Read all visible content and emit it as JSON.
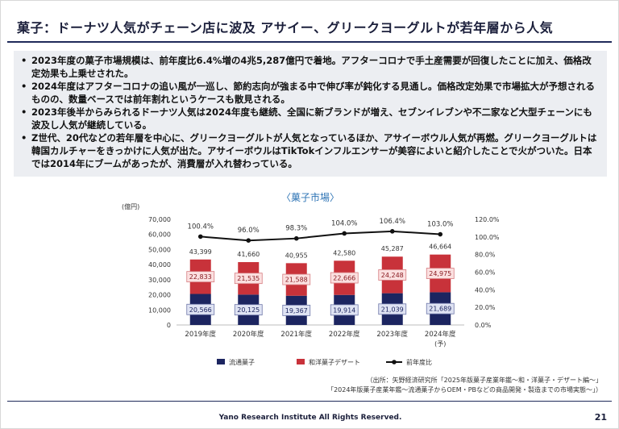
{
  "title": "菓子：ドーナツ人気がチェーン店に波及 アサイー、グリークヨーグルトが若年層から人気",
  "bullets": [
    "2023年度の菓子市場規模は、前年度比6.4%増の4兆5,287億円で着地。アフターコロナで手土産需要が回復したことに加え、価格改定効果も上乗せされた。",
    "2024年度はアフターコロナの追い風が一巡し、節約志向が強まる中で伸び率が鈍化する見通し。価格改定効果で市場拡大が予想されるものの、数量ベースでは前年割れというケースも散見される。",
    "2023年後半からみられるドーナツ人気は2024年度も継続、全国に新ブランドが増え、セブンイレブンや不二家など大型チェーンにも波及し人気が継続している。",
    "Z世代、20代などの若年層を中心に、グリークヨーグルトが人気となっているほか、アサイーボウル人気が再燃。グリークヨーグルトは韓国カルチャーをきっかけに人気が出た。アサイーボウルはTikTokインフルエンサーが美容によいと紹介したことで火がついた。日本では2014年にブームがあったが、消費層が入れ替わっている。"
  ],
  "chart_title": "〈菓子市場〉",
  "source_lines": [
    "（出所：矢野経済研究所「2025年版菓子産業年鑑～和・洋菓子・デザート編～」",
    "「2024年版菓子産業年鑑～流通菓子からOEM・PBなどの商品開発・製造までの市場実態～」）"
  ],
  "footer": "Yano Research Institute All Rights Reserved.",
  "page_number": "21",
  "colors": {
    "navy": "#1c2560",
    "red": "#c8323a",
    "line": "#111111",
    "accent": "#2e74b5"
  },
  "chart_data": {
    "type": "bar",
    "stacked": true,
    "title": "〈菓子市場〉",
    "ylabel": "(億円)",
    "ylim": [
      0,
      70000
    ],
    "y2lim": [
      0,
      120
    ],
    "y_ticks": [
      "0",
      "10,000",
      "20,000",
      "30,000",
      "40,000",
      "50,000",
      "60,000",
      "70,000"
    ],
    "y2_ticks": [
      "0.0%",
      "20.0%",
      "40.0%",
      "60.0%",
      "80.0%",
      "100.0%",
      "120.0%"
    ],
    "categories": [
      "2019年度",
      "2020年度",
      "2021年度",
      "2022年度",
      "2023年度",
      "2024年度"
    ],
    "category_notes": [
      "",
      "",
      "",
      "",
      "",
      "(予)"
    ],
    "series": [
      {
        "name": "流通菓子",
        "values": [
          20566,
          20125,
          19367,
          19914,
          21039,
          21689
        ],
        "labels": [
          "20,566",
          "20,125",
          "19,367",
          "19,914",
          "21,039",
          "21,689"
        ]
      },
      {
        "name": "和洋菓子デザート",
        "values": [
          22833,
          21535,
          21588,
          22666,
          24248,
          24975
        ],
        "labels": [
          "22,833",
          "21,535",
          "21,588",
          "22,666",
          "24,248",
          "24,975"
        ]
      }
    ],
    "totals": [
      43399,
      41660,
      40955,
      42580,
      45287,
      46664
    ],
    "total_labels": [
      "43,399",
      "41,660",
      "40,955",
      "42,580",
      "45,287",
      "46,664"
    ],
    "line": {
      "name": "前年度比",
      "values": [
        100.4,
        96.0,
        98.3,
        104.0,
        106.4,
        103.0
      ],
      "labels": [
        "100.4%",
        "96.0%",
        "98.3%",
        "104.0%",
        "106.4%",
        "103.0%"
      ]
    },
    "legend_position": "bottom",
    "grid": false
  }
}
